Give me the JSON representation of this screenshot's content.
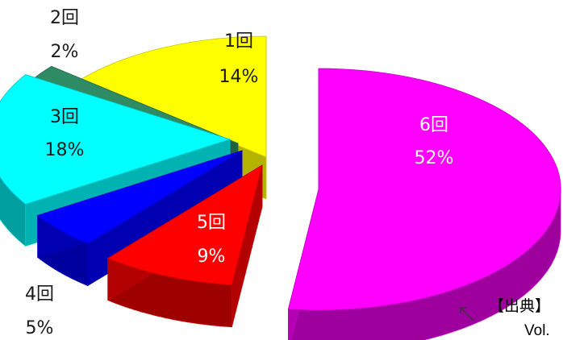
{
  "chart_data": {
    "type": "pie",
    "style": "exploded-3d",
    "slices": [
      {
        "label": "1回",
        "value": 14,
        "value_label": "14%",
        "color": "#ffff00"
      },
      {
        "label": "2回",
        "value": 2,
        "value_label": "2%",
        "color": "#2e8b63"
      },
      {
        "label": "3回",
        "value": 18,
        "value_label": "18%",
        "color": "#00ffff"
      },
      {
        "label": "4回",
        "value": 5,
        "value_label": "5%",
        "color": "#0000ff"
      },
      {
        "label": "5回",
        "value": 9,
        "value_label": "9%",
        "color": "#ff0000"
      },
      {
        "label": "6回",
        "value": 52,
        "value_label": "52%",
        "color": "#ff00ff"
      }
    ]
  },
  "source_note": {
    "line1": "【出典】",
    "line2": "Vol."
  }
}
